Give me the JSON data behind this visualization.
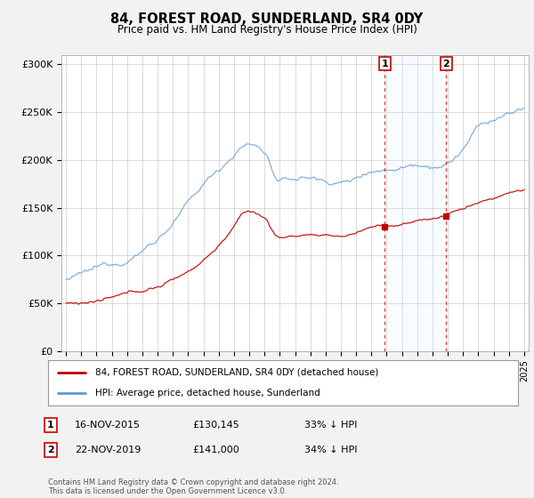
{
  "title": "84, FOREST ROAD, SUNDERLAND, SR4 0DY",
  "subtitle": "Price paid vs. HM Land Registry's House Price Index (HPI)",
  "legend_line1": "84, FOREST ROAD, SUNDERLAND, SR4 0DY (detached house)",
  "legend_line2": "HPI: Average price, detached house, Sunderland",
  "footnote": "Contains HM Land Registry data © Crown copyright and database right 2024.\nThis data is licensed under the Open Government Licence v3.0.",
  "transaction1_date": "16-NOV-2015",
  "transaction1_price": "£130,145",
  "transaction1_hpi": "33% ↓ HPI",
  "transaction2_date": "22-NOV-2019",
  "transaction2_price": "£141,000",
  "transaction2_hpi": "34% ↓ HPI",
  "transaction1_x": 2015.88,
  "transaction2_x": 2019.9,
  "transaction1_y_price": 130145,
  "transaction2_y_price": 141000,
  "hpi_color": "#5b9bd5",
  "price_color": "#c00000",
  "shade_color": "#ddeeff",
  "background_color": "#f2f2f2",
  "plot_bg": "#ffffff",
  "ylim": [
    0,
    310000
  ],
  "yticks": [
    0,
    50000,
    100000,
    150000,
    200000,
    250000,
    300000
  ],
  "ytick_labels": [
    "£0",
    "£50K",
    "£100K",
    "£150K",
    "£200K",
    "£250K",
    "£300K"
  ],
  "xlim_left": 1994.7,
  "xlim_right": 2025.3
}
